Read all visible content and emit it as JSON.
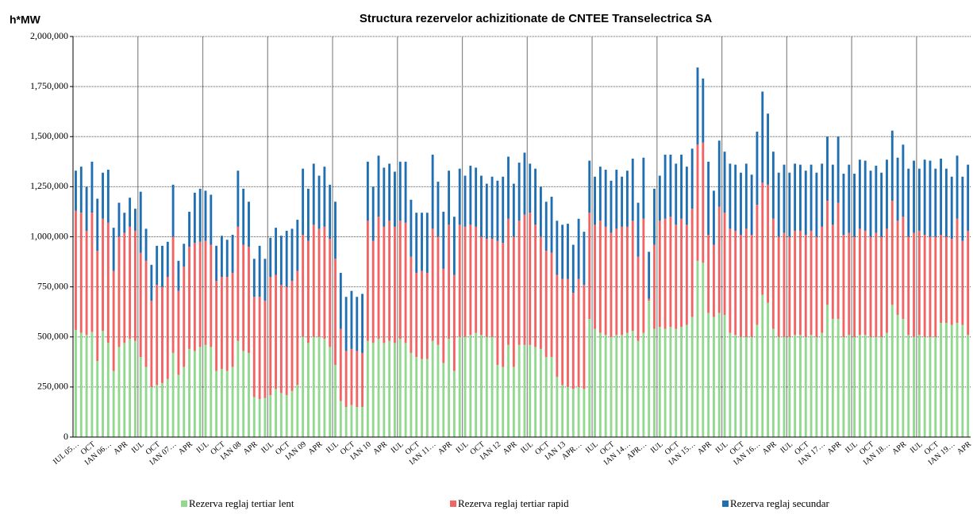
{
  "chart_data": {
    "type": "stacked_bar",
    "title": "Structura rezervelor achizitionate de CNTEE Transelectrica SA",
    "y_label": "h*MW",
    "categories": [
      "IUL 05…",
      null,
      null,
      "OCT",
      null,
      null,
      "IAN 06…",
      null,
      null,
      "APR",
      null,
      null,
      "IUL",
      null,
      null,
      "OCT",
      null,
      null,
      "IAN 07…",
      null,
      null,
      "APR",
      null,
      null,
      "IUL",
      null,
      null,
      "OCT",
      null,
      null,
      "IAN 08",
      null,
      null,
      "APR",
      null,
      null,
      "IUL",
      null,
      null,
      "OCT",
      null,
      null,
      "IAN 09",
      null,
      null,
      "APR",
      null,
      null,
      "IUL",
      null,
      null,
      "OCT",
      null,
      null,
      "IAN 10",
      null,
      null,
      "APR",
      null,
      null,
      "IUL",
      null,
      null,
      "OCT",
      null,
      null,
      "IAN 11…",
      null,
      null,
      "APR",
      null,
      null,
      "IUL",
      null,
      null,
      "OCT",
      null,
      null,
      "IAN 12",
      null,
      null,
      "APR",
      null,
      null,
      "IUL",
      null,
      null,
      "OCT",
      null,
      null,
      "IAN 13",
      null,
      null,
      "APR…",
      null,
      null,
      "IUL",
      null,
      null,
      "OCT",
      null,
      null,
      "IAN 14…",
      null,
      null,
      "APR…",
      null,
      null,
      "IUL",
      null,
      null,
      "OCT",
      null,
      null,
      "IAN 15…",
      null,
      null,
      "APR",
      null,
      null,
      "IUL",
      null,
      null,
      "OCT",
      null,
      null,
      "IAN 16…",
      null,
      null,
      "APR",
      null,
      null,
      "IUL",
      null,
      null,
      "OCT",
      null,
      null,
      "IAN 17…",
      null,
      null,
      "APR",
      null,
      null,
      "IUL",
      null,
      null,
      "OCT",
      null,
      null,
      "IAN 18…",
      null,
      null,
      "APR",
      null,
      null,
      "IUL",
      null,
      null,
      "OCT",
      null,
      null,
      "IAN 19…",
      null,
      null,
      "APR"
    ],
    "series": [
      {
        "name": "Rezerva reglaj tertiar lent",
        "color": "#92d88e",
        "values": [
          535000,
          520000,
          510000,
          525000,
          380000,
          530000,
          470000,
          330000,
          450000,
          470000,
          490000,
          480000,
          400000,
          350000,
          250000,
          260000,
          270000,
          290000,
          420000,
          310000,
          350000,
          440000,
          430000,
          450000,
          460000,
          450000,
          330000,
          340000,
          330000,
          350000,
          480000,
          430000,
          420000,
          200000,
          190000,
          195000,
          210000,
          240000,
          220000,
          210000,
          230000,
          260000,
          500000,
          470000,
          500000,
          500000,
          490000,
          450000,
          360000,
          180000,
          150000,
          160000,
          150000,
          150000,
          480000,
          470000,
          490000,
          470000,
          480000,
          470000,
          490000,
          470000,
          420000,
          400000,
          390000,
          390000,
          480000,
          460000,
          370000,
          490000,
          330000,
          500000,
          500000,
          510000,
          520000,
          510000,
          500000,
          500000,
          360000,
          350000,
          460000,
          350000,
          460000,
          460000,
          460000,
          450000,
          440000,
          400000,
          400000,
          300000,
          260000,
          250000,
          240000,
          250000,
          240000,
          590000,
          540000,
          520000,
          510000,
          500000,
          510000,
          510000,
          520000,
          530000,
          480000,
          520000,
          680000,
          540000,
          550000,
          540000,
          550000,
          540000,
          550000,
          560000,
          600000,
          880000,
          870000,
          620000,
          600000,
          620000,
          610000,
          520000,
          510000,
          500000,
          500000,
          500000,
          560000,
          710000,
          670000,
          540000,
          500000,
          500000,
          500000,
          510000,
          510000,
          500000,
          510000,
          500000,
          520000,
          660000,
          590000,
          590000,
          500000,
          510000,
          500000,
          510000,
          510000,
          500000,
          500000,
          500000,
          520000,
          660000,
          610000,
          590000,
          510000,
          500000,
          510000,
          500000,
          500000,
          500000,
          570000,
          570000,
          560000,
          570000,
          560000,
          510000
        ]
      },
      {
        "name": "Rezerva reglaj tertiar rapid",
        "color": "#f26464",
        "values": [
          595000,
          600000,
          520000,
          595000,
          550000,
          560000,
          600000,
          500000,
          550000,
          550000,
          560000,
          550000,
          520000,
          530000,
          430000,
          500000,
          480000,
          510000,
          580000,
          420000,
          500000,
          510000,
          540000,
          525000,
          520000,
          510000,
          450000,
          460000,
          470000,
          470000,
          570000,
          530000,
          530000,
          500000,
          510000,
          485000,
          590000,
          570000,
          540000,
          540000,
          550000,
          570000,
          510000,
          510000,
          560000,
          540000,
          560000,
          540000,
          530000,
          360000,
          280000,
          280000,
          280000,
          270000,
          600000,
          510000,
          610000,
          580000,
          600000,
          580000,
          590000,
          600000,
          480000,
          420000,
          440000,
          430000,
          560000,
          540000,
          470000,
          570000,
          480000,
          560000,
          550000,
          550000,
          530000,
          490000,
          490000,
          490000,
          620000,
          620000,
          630000,
          650000,
          620000,
          650000,
          660000,
          610000,
          560000,
          530000,
          520000,
          510000,
          530000,
          540000,
          480000,
          540000,
          520000,
          530000,
          520000,
          560000,
          540000,
          520000,
          530000,
          540000,
          530000,
          550000,
          420000,
          570000,
          10000,
          420000,
          530000,
          550000,
          550000,
          520000,
          540000,
          500000,
          540000,
          580000,
          600000,
          390000,
          360000,
          530000,
          510000,
          520000,
          520000,
          510000,
          540000,
          510000,
          600000,
          560000,
          590000,
          550000,
          500000,
          520000,
          500000,
          520000,
          520000,
          510000,
          520000,
          500000,
          530000,
          520000,
          470000,
          580000,
          510000,
          510000,
          500000,
          530000,
          520000,
          500000,
          520000,
          500000,
          520000,
          520000,
          470000,
          510000,
          490000,
          520000,
          520000,
          510000,
          500000,
          500000,
          440000,
          430000,
          430000,
          520000,
          420000,
          520000
        ]
      },
      {
        "name": "Rezerva reglaj secundar",
        "color": "#1f6fb2",
        "values": [
          200000,
          230000,
          220000,
          255000,
          260000,
          230000,
          265000,
          215000,
          170000,
          100000,
          145000,
          110000,
          305000,
          160000,
          180000,
          195000,
          205000,
          175000,
          260000,
          150000,
          115000,
          175000,
          250000,
          265000,
          250000,
          250000,
          175000,
          205000,
          185000,
          190000,
          280000,
          280000,
          225000,
          190000,
          255000,
          210000,
          195000,
          235000,
          245000,
          280000,
          260000,
          255000,
          330000,
          260000,
          305000,
          265000,
          300000,
          270000,
          285000,
          280000,
          270000,
          290000,
          270000,
          295000,
          295000,
          270000,
          305000,
          295000,
          285000,
          275000,
          295000,
          305000,
          285000,
          300000,
          290000,
          300000,
          370000,
          275000,
          285000,
          270000,
          290000,
          280000,
          255000,
          295000,
          295000,
          305000,
          275000,
          310000,
          300000,
          330000,
          310000,
          265000,
          290000,
          310000,
          245000,
          280000,
          250000,
          245000,
          280000,
          270000,
          270000,
          275000,
          240000,
          300000,
          265000,
          260000,
          240000,
          270000,
          285000,
          260000,
          295000,
          250000,
          280000,
          310000,
          270000,
          305000,
          235000,
          280000,
          225000,
          320000,
          310000,
          305000,
          320000,
          290000,
          300000,
          385000,
          320000,
          365000,
          270000,
          330000,
          305000,
          325000,
          330000,
          310000,
          325000,
          300000,
          365000,
          455000,
          355000,
          335000,
          320000,
          340000,
          320000,
          335000,
          330000,
          320000,
          330000,
          320000,
          315000,
          320000,
          300000,
          330000,
          305000,
          340000,
          315000,
          345000,
          350000,
          330000,
          335000,
          320000,
          345000,
          350000,
          315000,
          360000,
          340000,
          360000,
          310000,
          375000,
          380000,
          340000,
          380000,
          340000,
          310000,
          315000,
          320000,
          330000
        ]
      }
    ],
    "ylim": [
      0,
      2000000
    ],
    "yticks": [
      0,
      {
        "value": 250000,
        "label": "250,000"
      },
      {
        "value": 500000,
        "label": "500,000"
      },
      {
        "value": 750000,
        "label": "750,000"
      },
      {
        "value": 1000000,
        "label": "1,000,000"
      },
      {
        "value": 1250000,
        "label": "1,250,000"
      },
      {
        "value": 1500000,
        "label": "1,500,000"
      },
      {
        "value": 1750000,
        "label": "1,750,000"
      },
      {
        "value": 2000000,
        "label": "2,000,000"
      }
    ],
    "grid": true
  }
}
